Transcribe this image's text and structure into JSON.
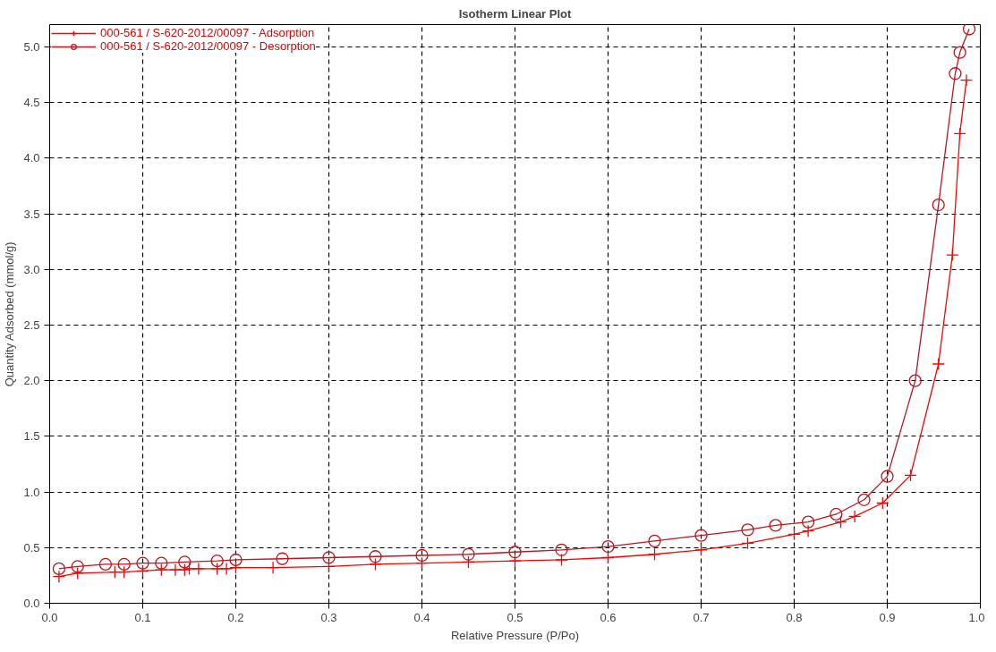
{
  "chart_data": {
    "type": "line",
    "title": "Isotherm Linear Plot",
    "xlabel": "Relative Pressure (P/Po)",
    "ylabel": "Quantity Adsorbed (mmol/g)",
    "xlim": [
      0,
      1
    ],
    "ylim": [
      0,
      5.2
    ],
    "xticks": [
      {
        "value": 0,
        "label": "0.0"
      },
      0.1,
      0.2,
      0.3,
      0.4,
      0.5,
      0.6,
      0.7,
      0.8,
      0.9,
      {
        "value": 1,
        "label": "1.0"
      }
    ],
    "yticks": [
      {
        "value": 0,
        "label": "0.0"
      },
      0.5,
      {
        "value": 1,
        "label": "1.0"
      },
      1.5,
      {
        "value": 2,
        "label": "2.0"
      },
      2.5,
      {
        "value": 3,
        "label": "3.0"
      },
      3.5,
      {
        "value": 4,
        "label": "4.0"
      },
      4.5,
      {
        "value": 5,
        "label": "5.0"
      }
    ],
    "grid": true,
    "legend": "top left",
    "line_style": "solid",
    "series": [
      {
        "name": "000-561 / S-620-2012/00097 - Adsorption",
        "color": "#ff0000",
        "marker": "cross",
        "x": [
          0.01,
          0.03,
          0.07,
          0.08,
          0.1,
          0.12,
          0.135,
          0.145,
          0.15,
          0.16,
          0.18,
          0.19,
          0.2,
          0.24,
          0.3,
          0.35,
          0.4,
          0.45,
          0.5,
          0.55,
          0.6,
          0.65,
          0.7,
          0.75,
          0.8,
          0.815,
          0.85,
          0.865,
          0.895,
          0.925,
          0.955,
          0.97,
          0.978,
          0.985
        ],
        "values": [
          0.24,
          0.27,
          0.28,
          0.28,
          0.29,
          0.3,
          0.3,
          0.3,
          0.31,
          0.31,
          0.31,
          0.31,
          0.32,
          0.32,
          0.33,
          0.35,
          0.36,
          0.37,
          0.38,
          0.39,
          0.41,
          0.44,
          0.48,
          0.54,
          0.62,
          0.65,
          0.73,
          0.78,
          0.9,
          1.15,
          2.15,
          3.13,
          4.22,
          4.7
        ]
      },
      {
        "name": "000-561 / S-620-2012/00097 - Desorption",
        "color": "#c0141e",
        "marker": "circle",
        "x": [
          0.01,
          0.03,
          0.06,
          0.08,
          0.1,
          0.12,
          0.145,
          0.18,
          0.2,
          0.25,
          0.3,
          0.35,
          0.4,
          0.45,
          0.5,
          0.55,
          0.6,
          0.65,
          0.7,
          0.75,
          0.78,
          0.815,
          0.845,
          0.875,
          0.9,
          0.93,
          0.955,
          0.973,
          0.978,
          0.988
        ],
        "values": [
          0.31,
          0.33,
          0.35,
          0.35,
          0.36,
          0.36,
          0.37,
          0.38,
          0.39,
          0.4,
          0.41,
          0.42,
          0.43,
          0.44,
          0.46,
          0.48,
          0.51,
          0.56,
          0.61,
          0.66,
          0.7,
          0.73,
          0.8,
          0.93,
          1.14,
          2.0,
          3.58,
          4.76,
          4.95,
          5.16
        ]
      }
    ]
  }
}
